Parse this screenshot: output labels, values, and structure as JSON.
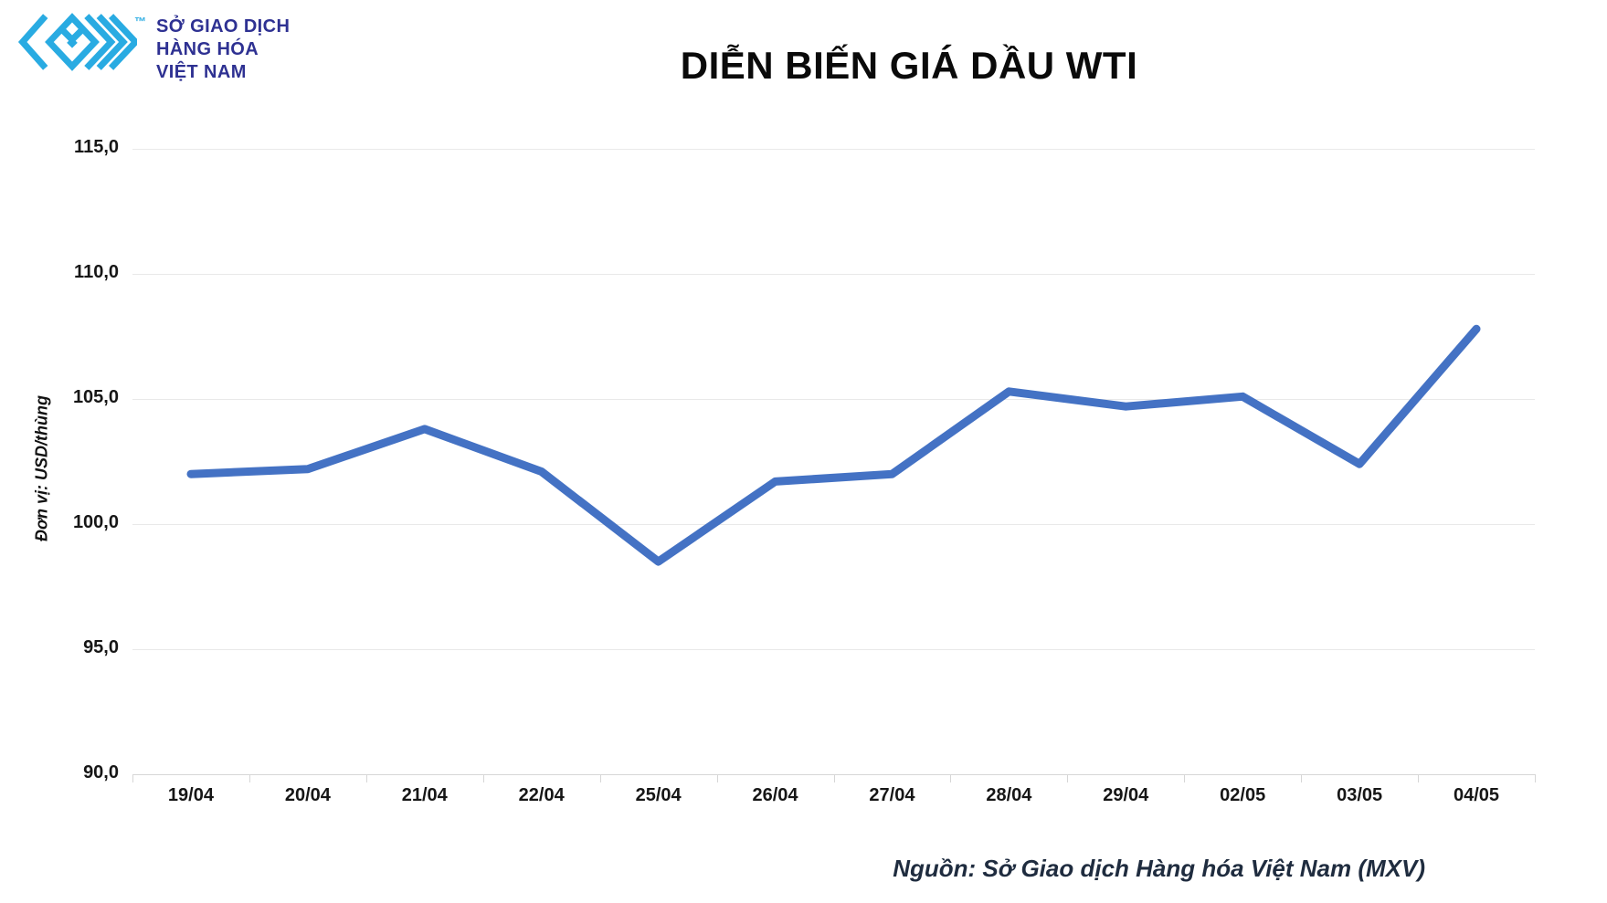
{
  "logo": {
    "trademark": "™",
    "mark_color": "#29abe2",
    "text_color": "#2e3192",
    "lines": [
      "SỞ GIAO DỊCH",
      "HÀNG HÓA",
      "VIỆT NAM"
    ]
  },
  "title": "DIỄN BIẾN GIÁ DẦU WTI",
  "source_note": "Nguồn: Sở Giao dịch Hàng hóa Việt Nam (MXV)",
  "chart_data": {
    "type": "line",
    "title": "DIỄN BIẾN GIÁ DẦU WTI",
    "xlabel": "",
    "ylabel": "Đơn vị: USD/thùng",
    "categories": [
      "19/04",
      "20/04",
      "21/04",
      "22/04",
      "25/04",
      "26/04",
      "27/04",
      "28/04",
      "29/04",
      "02/05",
      "03/05",
      "04/05"
    ],
    "values": [
      102.0,
      102.2,
      103.8,
      102.1,
      98.5,
      101.7,
      102.0,
      105.3,
      104.7,
      105.1,
      102.4,
      107.8
    ],
    "ylim": [
      90,
      115
    ],
    "ytick_step": 5,
    "ytick_labels": [
      "115,0",
      "110,0",
      "105,0",
      "100,0",
      "95,0",
      "90,0"
    ],
    "grid": "horizontal",
    "legend": "none",
    "line_color": "#4472c4"
  }
}
